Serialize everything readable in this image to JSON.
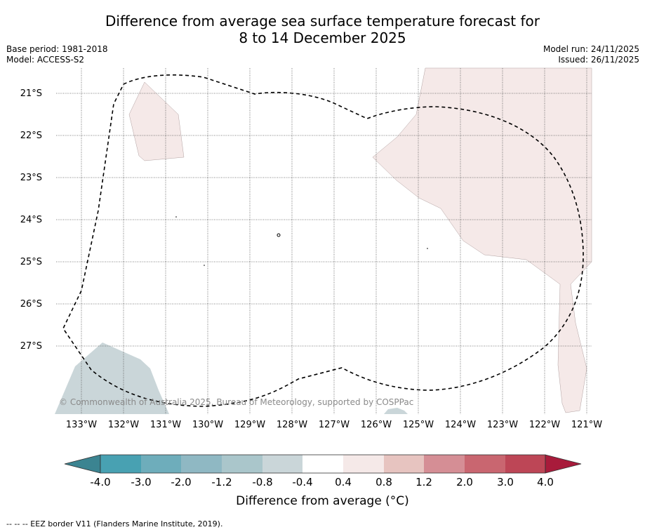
{
  "title": {
    "line1": "Difference from average sea surface temperature forecast for",
    "line2": "8 to 14 December 2025"
  },
  "meta": {
    "base_period": "Base period: 1981-2018",
    "model": "Model: ACCESS-S2",
    "model_run": "Model run: 24/11/2025",
    "issued": "Issued: 26/11/2025"
  },
  "map": {
    "lat_labels": [
      "21°S",
      "22°S",
      "23°S",
      "24°S",
      "25°S",
      "26°S",
      "27°S"
    ],
    "lon_labels": [
      "133°W",
      "132°W",
      "131°W",
      "130°W",
      "129°W",
      "128°W",
      "127°W",
      "126°W",
      "125°W",
      "124°W",
      "123°W",
      "122°W",
      "121°W"
    ],
    "copyright": "© Commonwealth of Australia 2025, Bureau of Meteorology, supported by COSPPac",
    "colors": {
      "warm_anomaly": "#f5e9e8",
      "cool_anomaly": "#cad6d9",
      "eez_border": "#000000",
      "grid": "#555555"
    }
  },
  "colorbar": {
    "tick_labels": [
      "-4.0",
      "-3.0",
      "-2.0",
      "-1.2",
      "-0.8",
      "-0.4",
      "0.4",
      "0.8",
      "1.2",
      "2.0",
      "3.0",
      "4.0"
    ],
    "colors": [
      "#3b8491",
      "#48a1b2",
      "#6eadbb",
      "#8fb8c3",
      "#aac6cb",
      "#cad6d9",
      "#ffffff",
      "#f5e9e8",
      "#e7c4c0",
      "#d58e95",
      "#c96670",
      "#bd4656",
      "#a81b3b"
    ],
    "title": "Difference from average (°C)"
  },
  "footer": "--  --  -- EEZ border V11 (Flanders Marine Institute, 2019)."
}
